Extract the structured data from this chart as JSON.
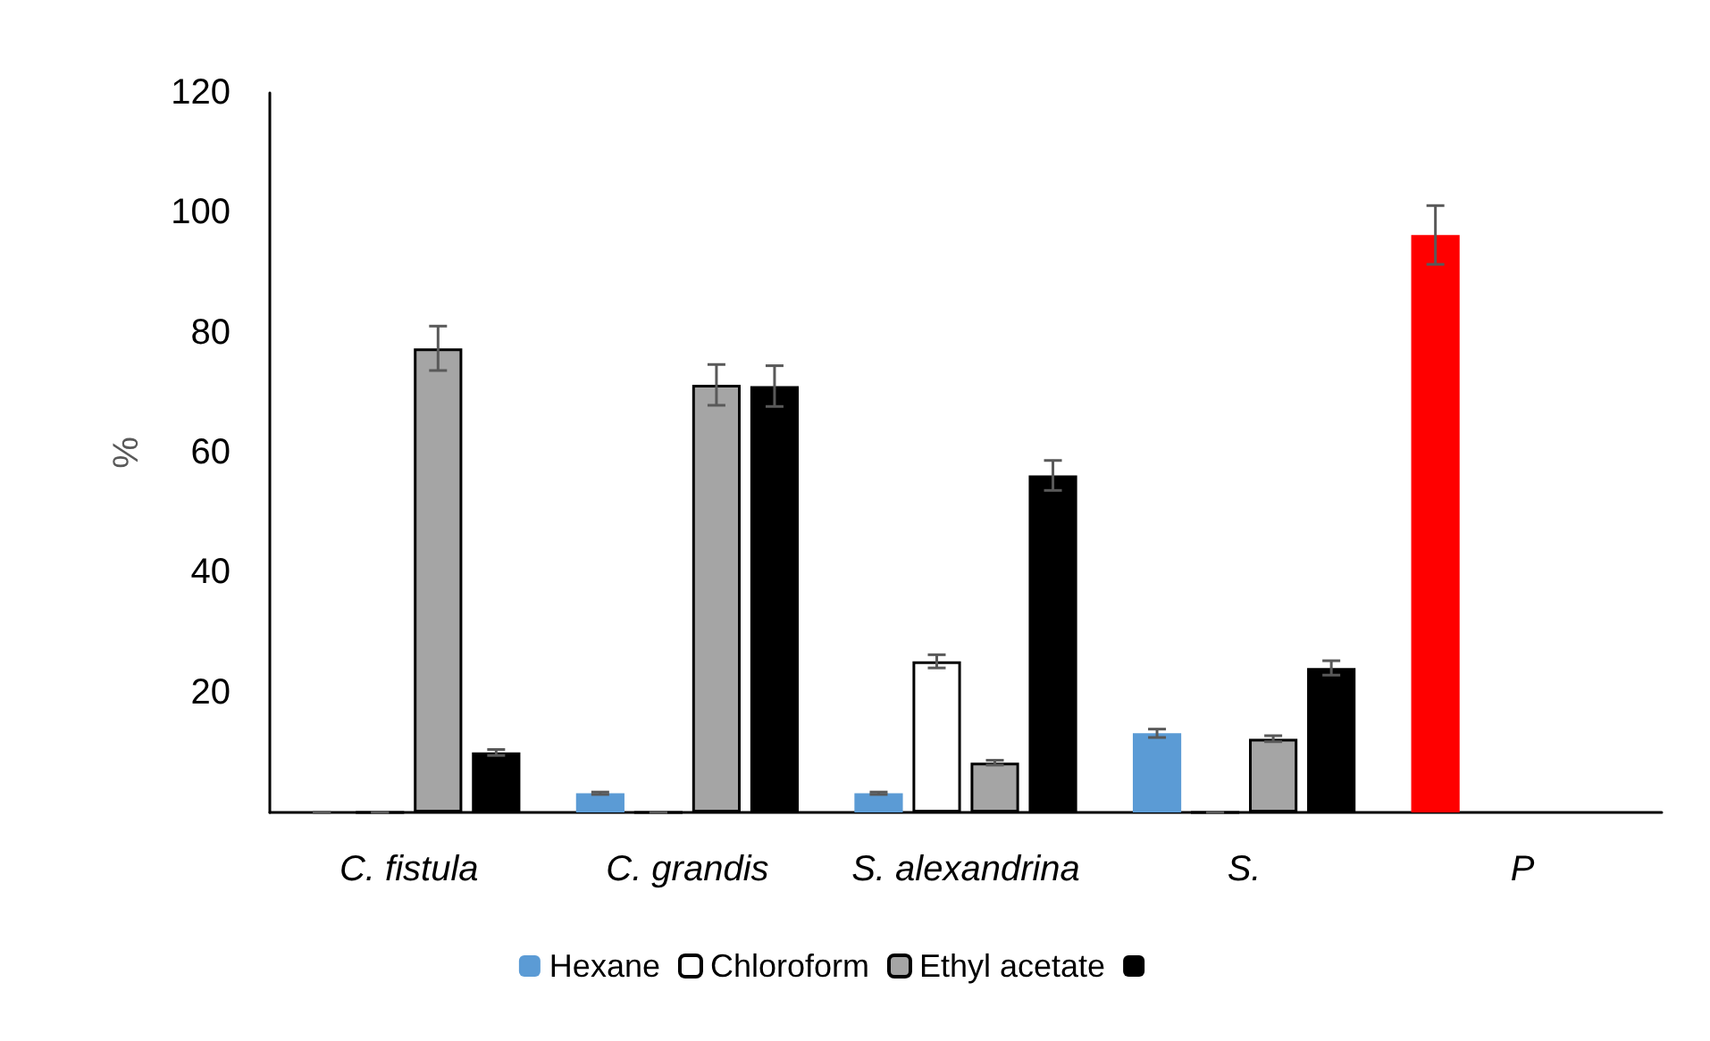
{
  "chart_data": {
    "type": "bar",
    "ylabel": "%",
    "categories": [
      "C. fistula",
      "C. grandis",
      "S. alexandrina",
      "S.",
      "P"
    ],
    "series": [
      {
        "name": "Hexane",
        "color": "#5b9bd5",
        "colors": [
          "#5b9bd5",
          "#5b9bd5",
          "#5b9bd5",
          "#5b9bd5",
          "#ff0000"
        ],
        "values": [
          0,
          3.2,
          3.2,
          13.2,
          96.3
        ],
        "errors": [
          0,
          0.2,
          0.2,
          0.7,
          4.9
        ]
      },
      {
        "name": "Chloroform",
        "color": "#ffffff",
        "values": [
          0,
          0,
          25.2,
          0,
          null
        ],
        "errors": [
          0,
          0,
          1.1,
          0,
          null
        ]
      },
      {
        "name": "Ethyl acetate",
        "color": "#a5a5a5",
        "values": [
          77.4,
          71.3,
          8.3,
          12.3,
          null
        ],
        "errors": [
          3.7,
          3.4,
          0.4,
          0.5,
          null
        ]
      },
      {
        "color": "#000000",
        "values": [
          10.0,
          71.1,
          56.2,
          24.1,
          null
        ],
        "errors": [
          0.5,
          3.4,
          2.5,
          1.2,
          null
        ]
      }
    ],
    "ylim": [
      0,
      120
    ],
    "yticks": [
      20,
      40,
      60,
      80,
      100,
      120
    ],
    "grid": false,
    "legend": "bottom"
  }
}
